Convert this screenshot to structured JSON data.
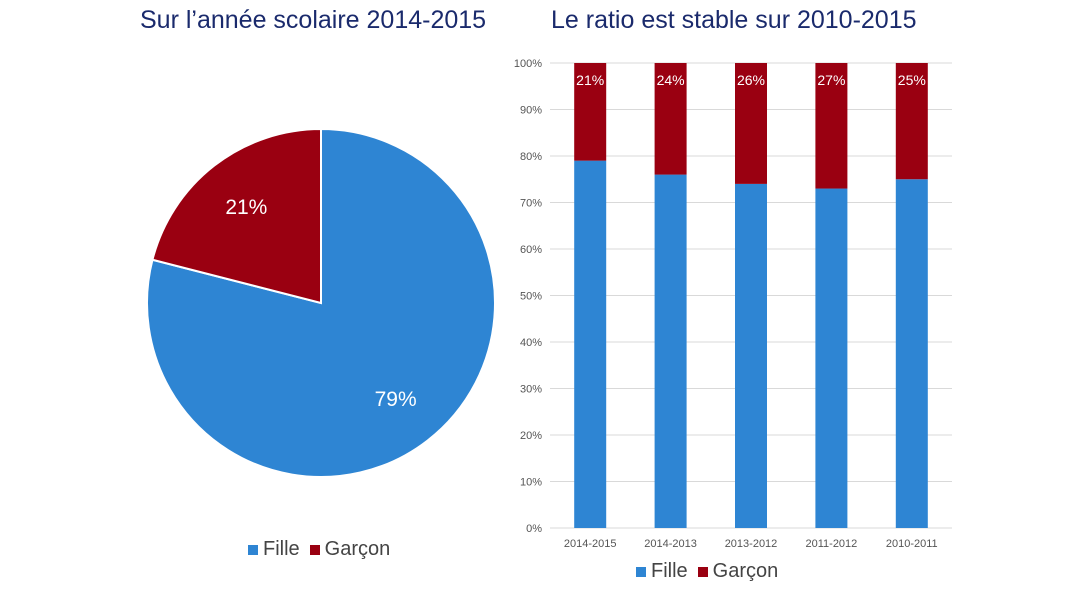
{
  "colors": {
    "fille": "#2e85d3",
    "garcon": "#9a0011",
    "grid": "#d9d9d9",
    "axis_text": "#555555"
  },
  "chart_data": [
    {
      "type": "pie",
      "title": "Sur l’année scolaire 2014-2015",
      "slices": [
        {
          "label": "Fille",
          "value": 79,
          "display": "79%"
        },
        {
          "label": "Garçon",
          "value": 21,
          "display": "21%"
        }
      ],
      "legend": {
        "position": "bottom",
        "entries": [
          "Fille",
          "Garçon"
        ]
      }
    },
    {
      "type": "bar",
      "stacked": true,
      "title": "Le ratio est stable sur 2010-2015",
      "categories": [
        "2014-2015",
        "2014-2013",
        "2013-2012",
        "2011-2012",
        "2010-2011"
      ],
      "series": [
        {
          "name": "Fille",
          "values": [
            79,
            76,
            74,
            73,
            75
          ]
        },
        {
          "name": "Garçon",
          "values": [
            21,
            24,
            26,
            27,
            25
          ],
          "labels": [
            "21%",
            "24%",
            "26%",
            "27%",
            "25%"
          ]
        }
      ],
      "ylim": [
        0,
        100
      ],
      "yticks": [
        "0%",
        "10%",
        "20%",
        "30%",
        "40%",
        "50%",
        "60%",
        "70%",
        "80%",
        "90%",
        "100%"
      ],
      "grid": true,
      "legend": {
        "position": "bottom",
        "entries": [
          "Fille",
          "Garçon"
        ]
      }
    }
  ]
}
